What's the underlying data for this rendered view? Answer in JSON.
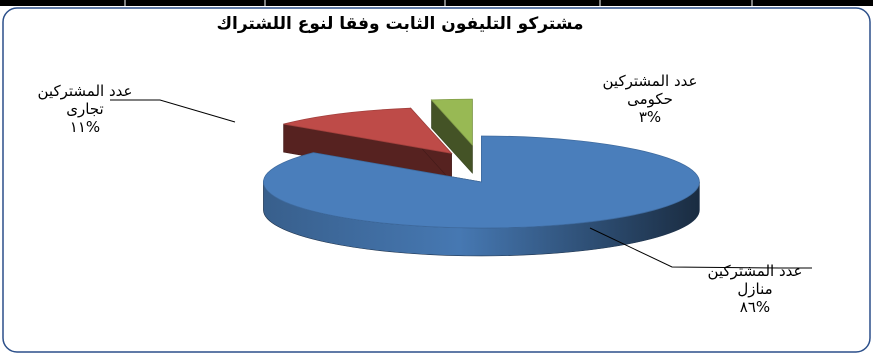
{
  "chart_data": {
    "type": "pie",
    "title": "مشتركو التليفون الثابت وفقا لنوع اللشتراك",
    "categories": [
      "عدد المشتركين منازل",
      "عدد المشتركين تجارى",
      "عدد المشتركين حكومى"
    ],
    "values": [
      86,
      11,
      3
    ],
    "slices": [
      {
        "label_line1": "عدد المشتركين",
        "label_line2": "منازل",
        "pct_text": "%٨٦",
        "value": 86,
        "color": "#4a7ebb"
      },
      {
        "label_line1": "عدد المشتركين",
        "label_line2": "تجارى",
        "pct_text": "%١١",
        "value": 11,
        "color": "#be4b48"
      },
      {
        "label_line1": "عدد المشتركين",
        "label_line2": "حكومى",
        "pct_text": "%٣",
        "value": 3,
        "color": "#98b954"
      }
    ],
    "style": "3d-exploded",
    "legend": "none"
  }
}
